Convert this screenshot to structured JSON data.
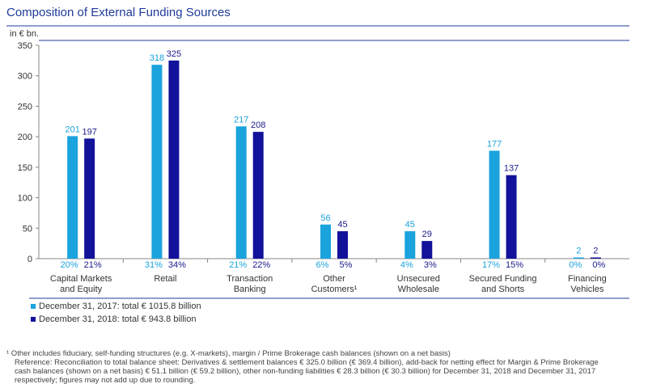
{
  "title": "Composition of External Funding Sources",
  "unit_label": "in € bn.",
  "colors": {
    "y2017": "#1ba3dd",
    "y2018": "#12129a",
    "rule": "#1f3c99"
  },
  "chart_data": {
    "type": "bar",
    "title": "Composition of External Funding Sources",
    "ylabel": "in € bn.",
    "ylim": [
      0,
      350
    ],
    "yticks": [
      0,
      50,
      100,
      150,
      200,
      250,
      300,
      350
    ],
    "categories": [
      [
        "Capital Markets",
        "and Equity"
      ],
      [
        "Retail"
      ],
      [
        "Transaction",
        "Banking"
      ],
      [
        "Other",
        "Customers¹"
      ],
      [
        "Unsecured",
        "Wholesale"
      ],
      [
        "Secured Funding",
        "and Shorts"
      ],
      [
        "Financing",
        "Vehicles"
      ]
    ],
    "series": [
      {
        "name": "December 31, 2017: total € 1015.8 billion",
        "values": [
          201,
          318,
          217,
          56,
          45,
          177,
          2
        ],
        "shares": [
          "20%",
          "31%",
          "21%",
          "6%",
          "4%",
          "17%",
          "0%"
        ]
      },
      {
        "name": "December 31, 2018: total € 943.8 billion",
        "values": [
          197,
          325,
          208,
          45,
          29,
          137,
          2
        ],
        "shares": [
          "21%",
          "34%",
          "22%",
          "5%",
          "3%",
          "15%",
          "0%"
        ]
      }
    ],
    "legend_position": "bottom-left",
    "grid": false
  },
  "footnotes": [
    "¹  Other includes fiduciary, self-funding structures (e.g. X-markets), margin / Prime Brokerage cash balances (shown on a net basis)",
    "Reference: Reconciliation to total balance sheet: Derivatives & settlement balances € 325.0 billion (€ 369.4 billion), add-back for netting effect for Margin & Prime Brokerage",
    "cash balances (shown on a net basis) € 51.1 billion (€ 59.2 billion), other non-funding liabilities € 28.3 billion (€ 30.3 billion) for December 31, 2018 and December 31, 2017",
    "respectively; figures may not add up due to rounding."
  ]
}
